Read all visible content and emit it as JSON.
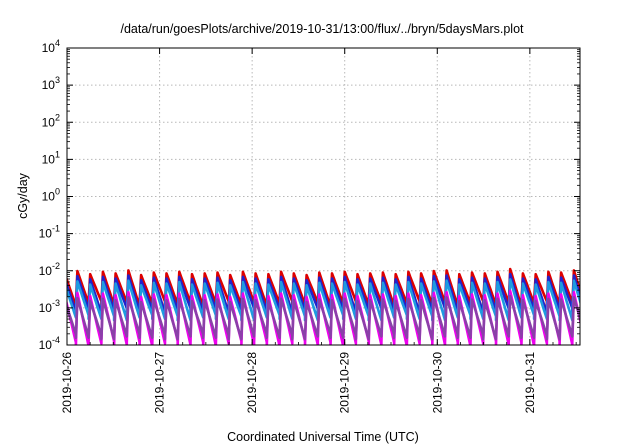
{
  "chart_data": {
    "type": "line",
    "title": "/data/run/goesPlots/archive/2019-10-31/13:00/flux/../bryn/5daysMars.plot",
    "xlabel": "Coordinated Universal Time (UTC)",
    "ylabel": "cGy/day",
    "x_range": [
      "2019-10-26T00:00",
      "2019-10-31T13:00"
    ],
    "ylim": [
      0.0001,
      10000
    ],
    "yscale": "log",
    "grid": true,
    "x_ticks": [
      "2019-10-26",
      "2019-10-27",
      "2019-10-28",
      "2019-10-29",
      "2019-10-30",
      "2019-10-31"
    ],
    "y_ticks": [
      {
        "base": "10",
        "exp": "4"
      },
      {
        "base": "10",
        "exp": "3"
      },
      {
        "base": "10",
        "exp": "2"
      },
      {
        "base": "10",
        "exp": "1"
      },
      {
        "base": "10",
        "exp": "0"
      },
      {
        "base": "10",
        "exp": "-1"
      },
      {
        "base": "10",
        "exp": "-2"
      },
      {
        "base": "10",
        "exp": "-3"
      },
      {
        "base": "10",
        "exp": "-4"
      }
    ],
    "cycle_hours": 3.3,
    "series": [
      {
        "color": "#dd0000",
        "peak": 0.0085,
        "trough": 0.0013
      },
      {
        "color": "#2222cc",
        "peak": 0.0062,
        "trough": 0.00085
      },
      {
        "color": "#1e9be0",
        "peak": 0.0045,
        "trough": 0.00055
      },
      {
        "color": "#ee00ee",
        "peak": 0.0022,
        "trough": 0.00011
      },
      {
        "color": "#8a40a8",
        "peak": 0.0016,
        "trough": 0.00017
      }
    ]
  }
}
